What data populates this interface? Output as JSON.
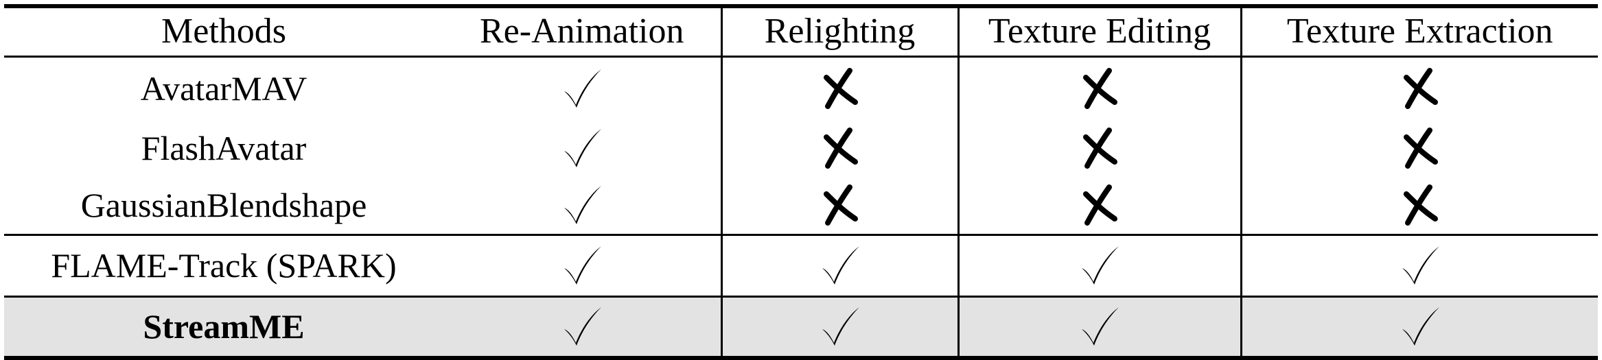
{
  "table": {
    "headers": [
      "Methods",
      "Re-Animation",
      "Relighting",
      "Texture Editing",
      "Texture Extraction"
    ],
    "rows": [
      {
        "method": "AvatarMAV",
        "bold": false,
        "cells": [
          "check",
          "cross",
          "cross",
          "cross"
        ]
      },
      {
        "method": "FlashAvatar",
        "bold": false,
        "cells": [
          "check",
          "cross",
          "cross",
          "cross"
        ]
      },
      {
        "method": "GaussianBlendshape",
        "bold": false,
        "cells": [
          "check",
          "cross",
          "cross",
          "cross"
        ]
      },
      {
        "method": "FLAME-Track (SPARK)",
        "bold": false,
        "cells": [
          "check",
          "check",
          "check",
          "check"
        ]
      },
      {
        "method": "StreamME",
        "bold": true,
        "cells": [
          "check",
          "check",
          "check",
          "check"
        ]
      }
    ],
    "icons": {
      "check": "check-icon",
      "cross": "cross-icon"
    },
    "highlight_color": "#e3e3e3"
  }
}
